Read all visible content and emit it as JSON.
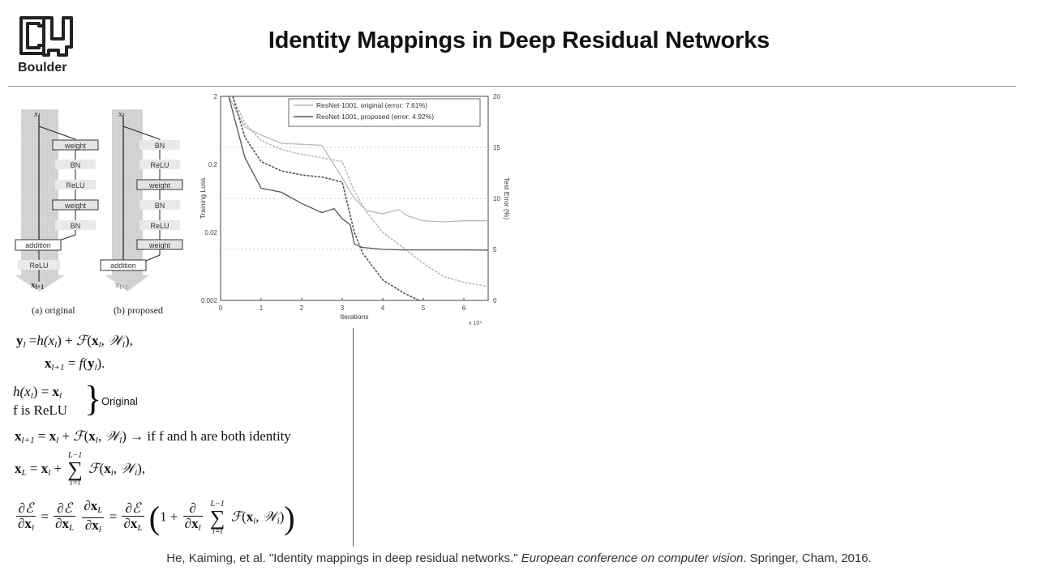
{
  "header": {
    "logo_text": "Boulder",
    "title": "Identity Mappings in Deep Residual Networks"
  },
  "diagram_a": {
    "input": "x",
    "input_sub": "l",
    "blocks": [
      "weight",
      "BN",
      "ReLU",
      "weight",
      "BN"
    ],
    "addition": "addition",
    "post": "ReLU",
    "output": "x",
    "output_sub": "l+1",
    "caption": "(a) original"
  },
  "diagram_b": {
    "input": "x",
    "input_sub": "l",
    "blocks": [
      "BN",
      "ReLU",
      "weight",
      "BN",
      "ReLU",
      "weight"
    ],
    "addition": "addition",
    "output": "x",
    "output_sub": "l+1",
    "caption": "(b) proposed"
  },
  "chart_data": {
    "type": "line",
    "xlabel": "Iterations",
    "x_multiplier": "x 10⁴",
    "ylabel_left": "Training Loss",
    "ylabel_right": "Test Error (%)",
    "x_ticks": [
      "0",
      "1",
      "2",
      "3",
      "4",
      "5",
      "6"
    ],
    "y_left_ticks": [
      "2",
      "0.2",
      "0.02",
      "0.002"
    ],
    "y_right_ticks": [
      "20",
      "15",
      "10",
      "5",
      "0"
    ],
    "xlim": [
      0,
      6.6
    ],
    "ylim_left_log": [
      0.002,
      2
    ],
    "ylim_right": [
      0,
      20
    ],
    "grid": true,
    "legend_position": "top-right",
    "series": [
      {
        "name": "ResNet-1001, original (error: 7.61%)",
        "color": "#b9b9b9",
        "test_error": {
          "x": [
            0.2,
            0.6,
            1.0,
            1.5,
            2.0,
            2.5,
            3.0,
            3.3,
            3.6,
            4.0,
            4.4,
            4.6,
            5.0,
            5.5,
            6.0,
            6.6
          ],
          "y": [
            20,
            17,
            16.2,
            15.4,
            15.3,
            15.2,
            12,
            10,
            8.8,
            8.5,
            8.9,
            8.3,
            7.8,
            7.7,
            7.8,
            7.8
          ]
        },
        "train_loss": {
          "x": [
            0.3,
            0.6,
            1.0,
            1.5,
            2.0,
            2.5,
            3.0,
            3.3,
            3.6,
            4.0,
            4.5,
            5.0,
            5.5,
            6.0,
            6.6
          ],
          "y": [
            2.0,
            0.8,
            0.45,
            0.33,
            0.28,
            0.25,
            0.22,
            0.08,
            0.04,
            0.02,
            0.012,
            0.007,
            0.0045,
            0.0037,
            0.0032
          ]
        }
      },
      {
        "name": "ResNet-1001, proposed (error: 4.92%)",
        "color": "#555555",
        "test_error": {
          "x": [
            0.2,
            0.6,
            1.0,
            1.5,
            2.0,
            2.5,
            2.8,
            3.0,
            3.2,
            3.3,
            3.5,
            4.0,
            4.5,
            5.0,
            5.5,
            6.0,
            6.6
          ],
          "y": [
            20,
            14,
            11,
            10.6,
            9.5,
            8.6,
            9.0,
            8.0,
            7.4,
            5.5,
            5.2,
            5.0,
            4.95,
            4.95,
            4.95,
            4.95,
            4.92
          ]
        },
        "train_loss": {
          "x": [
            0.3,
            0.6,
            1.0,
            1.5,
            2.0,
            2.5,
            3.0,
            3.3,
            3.5,
            4.0,
            4.5,
            4.9
          ],
          "y": [
            2.0,
            0.5,
            0.22,
            0.16,
            0.14,
            0.13,
            0.11,
            0.02,
            0.01,
            0.004,
            0.0026,
            0.002
          ]
        }
      }
    ]
  },
  "equations": {
    "eq1_rhs1": "h(x",
    "eq1_tail": "), ",
    "eq2_tail": ").",
    "identity_h": "h(x",
    "f_is": "f is ReLU",
    "original_label": "Original",
    "eq_identity_text": "→ if f and h are both identity",
    "sum_upper": "L−1",
    "sum_lower": "i=l"
  },
  "citation": {
    "authors": "He, Kaiming, et al. \"Identity mappings in deep residual networks.\" ",
    "venue": "European conference on computer vision",
    "rest": ". Springer, Cham, 2016."
  }
}
